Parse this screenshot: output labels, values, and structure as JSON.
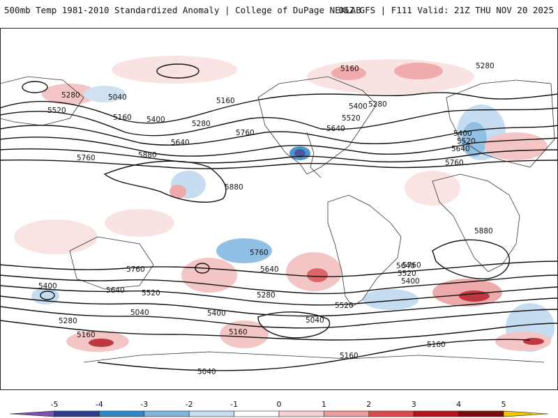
{
  "header": {
    "left": "500mb Temp 1981-2010 Standardized Anomaly | College of DuPage NEXLAB",
    "right": "06Z GFS | F111 Valid: 21Z THU NOV 20 2025"
  },
  "contour_labels": [
    "5040",
    "5280",
    "5520",
    "5160",
    "5400",
    "5640",
    "5760",
    "5880",
    "5160",
    "5280",
    "5400",
    "5520",
    "5640",
    "5760",
    "5280",
    "5400",
    "5520",
    "5640",
    "5760",
    "5880",
    "5280",
    "5400",
    "5160",
    "5520",
    "5640",
    "5760",
    "5040",
    "5160",
    "5280",
    "5400",
    "5520",
    "5640",
    "5760",
    "5880",
    "5400",
    "5520",
    "5640",
    "5760",
    "5040",
    "5160",
    "5280",
    "5160",
    "5040",
    "5160"
  ],
  "colorbar": {
    "ticks": [
      "-5",
      "-4",
      "-3",
      "-2",
      "-1",
      "0",
      "1",
      "2",
      "3",
      "4",
      "5"
    ],
    "colors": [
      "#7b4fb4",
      "#2d3c8c",
      "#2f86c9",
      "#7fb6e0",
      "#c8ddf0",
      "#ffffff",
      "#f6d0d0",
      "#ec9c9c",
      "#d94b4b",
      "#b4161e",
      "#7a0a10",
      "#f2c500"
    ]
  }
}
